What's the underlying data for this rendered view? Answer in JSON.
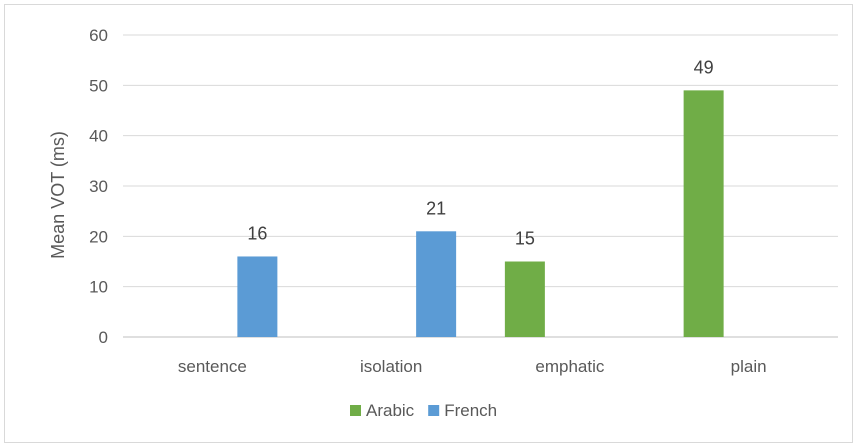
{
  "chart_data": {
    "type": "bar",
    "title": "",
    "xlabel": "",
    "ylabel": "Mean VOT (ms)",
    "ylim": [
      0,
      60
    ],
    "yticks": [
      0,
      10,
      20,
      30,
      40,
      50,
      60
    ],
    "grid": true,
    "legend_position": "bottom",
    "categories": [
      "sentence",
      "isolation",
      "emphatic",
      "plain"
    ],
    "series": [
      {
        "name": "Arabic",
        "color": "#70ad47",
        "values": [
          null,
          null,
          15,
          49
        ]
      },
      {
        "name": "French",
        "color": "#5b9bd5",
        "values": [
          16,
          21,
          null,
          null
        ]
      }
    ],
    "data_labels": true
  }
}
